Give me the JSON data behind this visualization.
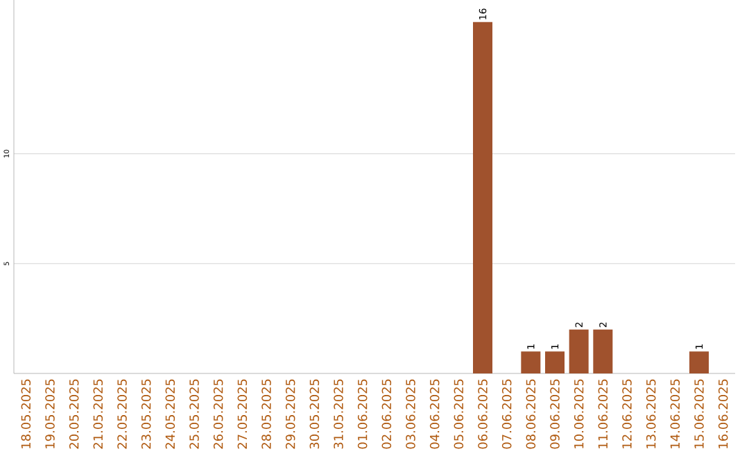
{
  "chart_data": {
    "type": "bar",
    "categories": [
      "18.05.2025",
      "19.05.2025",
      "20.05.2025",
      "21.05.2025",
      "22.05.2025",
      "23.05.2025",
      "24.05.2025",
      "25.05.2025",
      "26.05.2025",
      "27.05.2025",
      "28.05.2025",
      "29.05.2025",
      "30.05.2025",
      "31.05.2025",
      "01.06.2025",
      "02.06.2025",
      "03.06.2025",
      "04.06.2025",
      "05.06.2025",
      "06.06.2025",
      "07.06.2025",
      "08.06.2025",
      "09.06.2025",
      "10.06.2025",
      "11.06.2025",
      "12.06.2025",
      "13.06.2025",
      "14.06.2025",
      "15.06.2025",
      "16.06.2025"
    ],
    "values": [
      0,
      0,
      0,
      0,
      0,
      0,
      0,
      0,
      0,
      0,
      0,
      0,
      0,
      0,
      0,
      0,
      0,
      0,
      0,
      16,
      0,
      1,
      1,
      2,
      2,
      0,
      0,
      0,
      1,
      0
    ],
    "value_labels": [
      null,
      null,
      null,
      null,
      null,
      null,
      null,
      null,
      null,
      null,
      null,
      null,
      null,
      null,
      null,
      null,
      null,
      null,
      null,
      "16",
      null,
      "1",
      "1",
      "2",
      "2",
      null,
      null,
      null,
      "1",
      null
    ],
    "color": "#a0522d",
    "ylim": [
      0,
      17
    ],
    "yticks": [
      5,
      10
    ],
    "grid": "y"
  }
}
